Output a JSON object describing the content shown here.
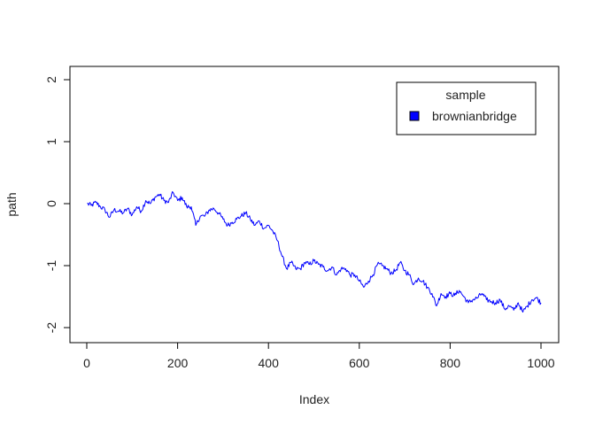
{
  "chart_data": {
    "type": "line",
    "title": "",
    "xlabel": "Index",
    "ylabel": "path",
    "xlim": [
      0,
      1000
    ],
    "ylim": [
      -2,
      2
    ],
    "x_ticks": [
      0,
      200,
      400,
      600,
      800,
      1000
    ],
    "y_ticks": [
      -2,
      -1,
      0,
      1,
      2
    ],
    "x_tick_labels": [
      "0",
      "200",
      "400",
      "600",
      "800",
      "1000"
    ],
    "y_tick_labels": [
      "-2",
      "-1",
      "0",
      "1",
      "2"
    ],
    "grid": false,
    "legend": {
      "title": "sample",
      "placement": "top-right",
      "entries": [
        "brownianbridge"
      ]
    },
    "colors": {
      "line": "#0000ff",
      "legend_swatch": "#0000ff",
      "axis": "#000000"
    },
    "series": [
      {
        "name": "brownianbridge",
        "x": [
          1,
          10,
          20,
          30,
          40,
          50,
          60,
          70,
          80,
          90,
          100,
          110,
          120,
          130,
          140,
          150,
          160,
          170,
          180,
          190,
          200,
          210,
          220,
          230,
          240,
          250,
          260,
          270,
          280,
          290,
          300,
          310,
          320,
          330,
          340,
          350,
          360,
          370,
          380,
          390,
          400,
          410,
          420,
          430,
          440,
          450,
          460,
          470,
          480,
          490,
          500,
          510,
          520,
          530,
          540,
          550,
          560,
          570,
          580,
          590,
          600,
          610,
          620,
          630,
          640,
          650,
          660,
          670,
          680,
          690,
          700,
          710,
          720,
          730,
          740,
          750,
          760,
          770,
          780,
          790,
          800,
          810,
          820,
          830,
          840,
          850,
          860,
          870,
          880,
          890,
          900,
          910,
          920,
          930,
          940,
          950,
          960,
          970,
          980,
          990,
          1000
        ],
        "y": [
          0,
          -0.03,
          0.02,
          -0.05,
          -0.1,
          -0.22,
          -0.1,
          -0.12,
          -0.15,
          -0.08,
          -0.18,
          -0.05,
          -0.12,
          0.05,
          0.0,
          0.1,
          0.15,
          0.05,
          0.02,
          0.18,
          0.05,
          0.1,
          -0.05,
          -0.05,
          -0.35,
          -0.2,
          -0.2,
          -0.1,
          -0.08,
          -0.15,
          -0.25,
          -0.35,
          -0.3,
          -0.25,
          -0.2,
          -0.15,
          -0.25,
          -0.35,
          -0.28,
          -0.4,
          -0.35,
          -0.45,
          -0.6,
          -0.85,
          -1.05,
          -0.95,
          -1.05,
          -1.05,
          -0.95,
          -0.98,
          -0.92,
          -0.98,
          -1.02,
          -1.08,
          -1.02,
          -1.15,
          -1.05,
          -1.05,
          -1.15,
          -1.15,
          -1.25,
          -1.35,
          -1.25,
          -1.15,
          -0.98,
          -1.0,
          -1.05,
          -1.12,
          -1.08,
          -0.95,
          -1.08,
          -1.15,
          -1.3,
          -1.2,
          -1.25,
          -1.35,
          -1.45,
          -1.65,
          -1.45,
          -1.5,
          -1.45,
          -1.48,
          -1.4,
          -1.5,
          -1.6,
          -1.55,
          -1.52,
          -1.45,
          -1.55,
          -1.58,
          -1.6,
          -1.55,
          -1.7,
          -1.65,
          -1.72,
          -1.6,
          -1.75,
          -1.65,
          -1.55,
          -1.52,
          -1.6
        ]
      }
    ]
  }
}
